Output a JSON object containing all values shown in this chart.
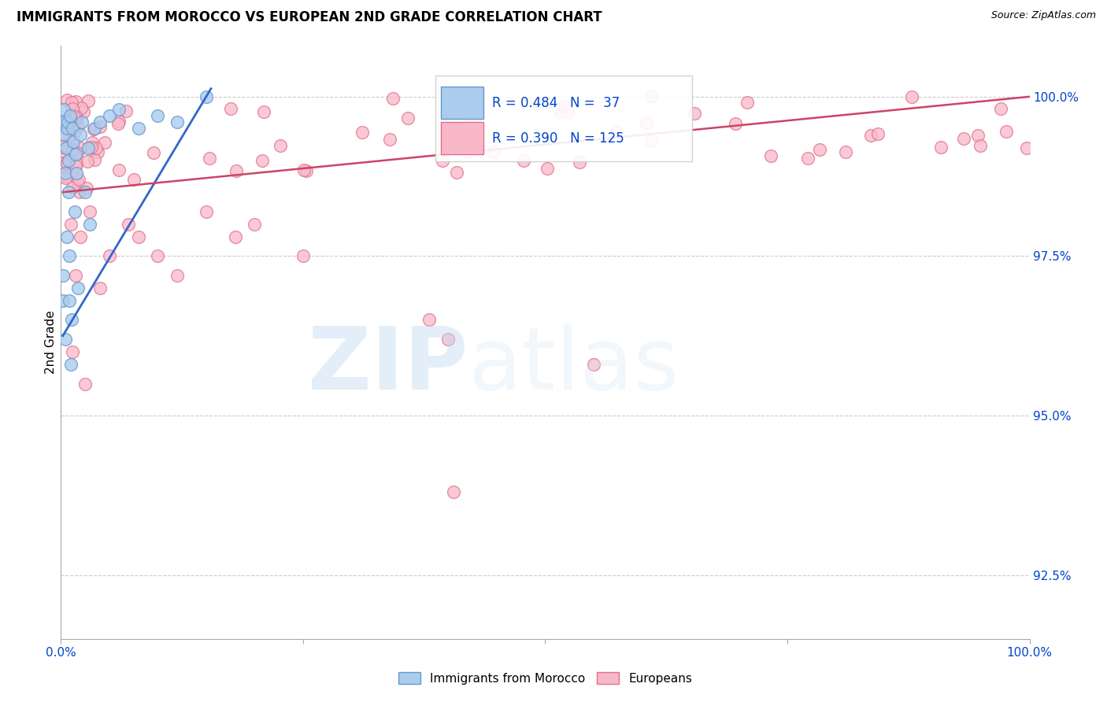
{
  "title": "IMMIGRANTS FROM MOROCCO VS EUROPEAN 2ND GRADE CORRELATION CHART",
  "source": "Source: ZipAtlas.com",
  "ylabel": "2nd Grade",
  "right_yticks": [
    92.5,
    95.0,
    97.5,
    100.0
  ],
  "right_ytick_labels": [
    "92.5%",
    "95.0%",
    "97.5%",
    "100.0%"
  ],
  "xmin": 0.0,
  "xmax": 100.0,
  "ymin": 91.5,
  "ymax": 100.8,
  "morocco_color": "#aaccee",
  "morocco_edge": "#6699cc",
  "european_color": "#f9b8c8",
  "european_edge": "#e07090",
  "morocco_R": 0.484,
  "morocco_N": 37,
  "european_R": 0.39,
  "european_N": 125,
  "legend_R_color": "#0044cc",
  "trend_morocco_color": "#3366cc",
  "trend_european_color": "#cc4466"
}
